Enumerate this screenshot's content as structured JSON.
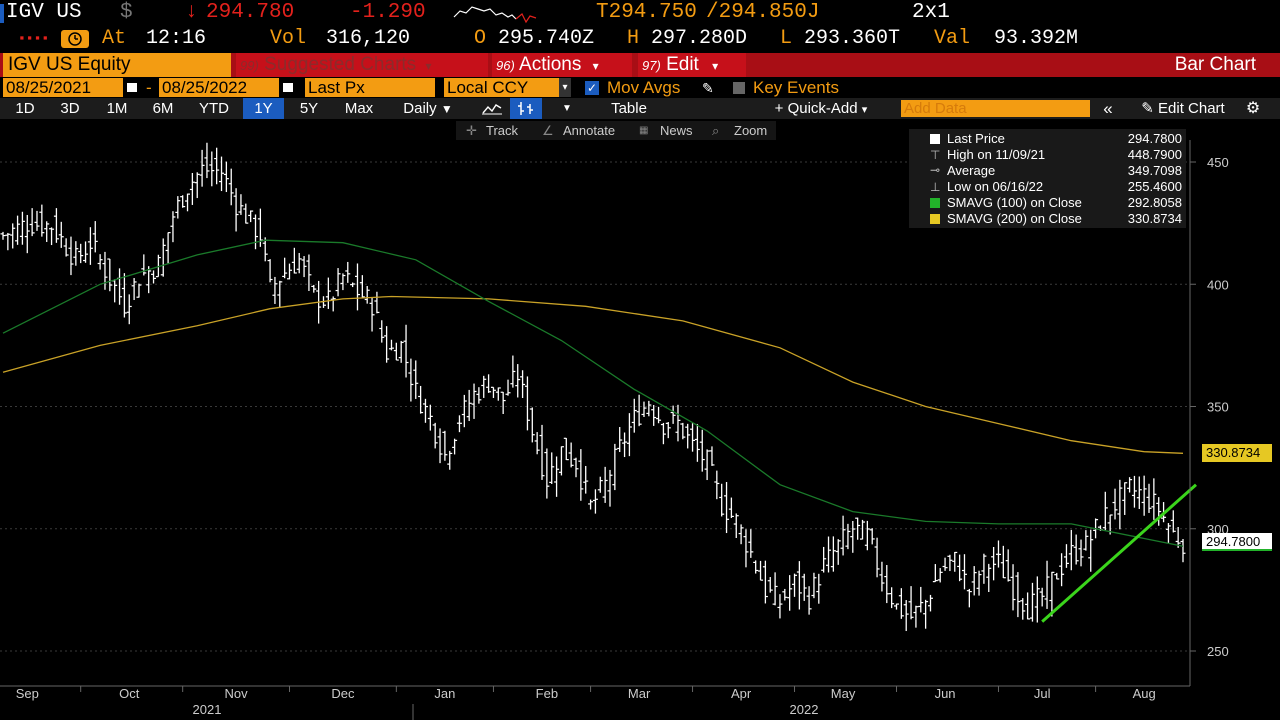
{
  "quote": {
    "ticker": "IGV US",
    "currency_symbol": "$",
    "arrow": "↓",
    "last": "294.780",
    "change": "-1.290",
    "bid": "T294.750",
    "ask": "/294.850J",
    "size": "2x1",
    "time_label": "At",
    "time": "12:16",
    "vol_label": "Vol",
    "vol": "316,120",
    "open_label": "O",
    "open": "295.740Z",
    "high_label": "H",
    "high": "297.280D",
    "low_label": "L",
    "low": "293.360T",
    "val_label": "Val",
    "val": "93.392M"
  },
  "titlebar": {
    "security": "IGV US Equity",
    "suggested_num": "99)",
    "suggested": "Suggested Charts",
    "actions_num": "96)",
    "actions": "Actions",
    "edit_num": "97)",
    "edit": "Edit",
    "page_title": "Bar Chart",
    "dropdown_arrow": "▾"
  },
  "settings": {
    "start_date": "08/25/2021",
    "date_sep": "-",
    "end_date": "08/25/2022",
    "price_field": "Last Px",
    "currency": "Local CCY",
    "mov_avgs": "Mov Avgs",
    "key_events": "Key Events"
  },
  "toolbar": {
    "ranges": [
      "1D",
      "3D",
      "1M",
      "6M",
      "YTD",
      "1Y",
      "5Y",
      "Max"
    ],
    "selected_range": "1Y",
    "periodicity": "Daily",
    "table": "Table",
    "quick_add": "+ Quick-Add",
    "add_data_placeholder": "Add Data",
    "collapse": "«",
    "edit_chart": "Edit Chart",
    "settings": "⚙"
  },
  "chart_tools": {
    "track": "Track",
    "annotate": "Annotate",
    "news": "News",
    "zoom": "Zoom"
  },
  "legend": [
    {
      "label": "Last Price",
      "value": "294.7800",
      "marker": "square-white"
    },
    {
      "label": "High on 11/09/21",
      "value": "448.7900",
      "marker": "high-marker"
    },
    {
      "label": "Average",
      "value": "349.7098",
      "marker": "avg-marker"
    },
    {
      "label": "Low on 06/16/22",
      "value": "255.4600",
      "marker": "low-marker"
    },
    {
      "label": "SMAVG (100)  on Close",
      "value": "292.8058",
      "marker": "square-green"
    },
    {
      "label": "SMAVG (200)  on Close",
      "value": "330.8734",
      "marker": "square-yellow"
    }
  ],
  "tags": {
    "sma200": "330.8734",
    "last": "294.7800"
  },
  "colors": {
    "accent_orange": "#f39c12",
    "header_red": "#a80e15",
    "selected_blue": "#1b5cbf",
    "sma100": "#1a7a2a",
    "sma200": "#c9a227",
    "trendline": "#3bd51c"
  },
  "chart_data": {
    "type": "bar",
    "title": "",
    "y_ticks": [
      450,
      400,
      350,
      300,
      250
    ],
    "ylim": [
      237,
      462
    ],
    "x_months": [
      "Sep",
      "Oct",
      "Nov",
      "Dec",
      "Jan",
      "Feb",
      "Mar",
      "Apr",
      "May",
      "Jun",
      "Jul",
      "Aug"
    ],
    "x_years": [
      "2021",
      "2022"
    ],
    "price_close": [
      [
        0,
        420
      ],
      [
        5,
        425
      ],
      [
        10,
        424
      ],
      [
        15,
        410
      ],
      [
        18,
        417
      ],
      [
        22,
        402
      ],
      [
        25,
        392
      ],
      [
        28,
        403
      ],
      [
        32,
        408
      ],
      [
        35,
        428
      ],
      [
        38,
        440
      ],
      [
        41,
        447
      ],
      [
        45,
        446
      ],
      [
        48,
        433
      ],
      [
        50,
        428
      ],
      [
        53,
        420
      ],
      [
        55,
        398
      ],
      [
        58,
        405
      ],
      [
        61,
        410
      ],
      [
        64,
        395
      ],
      [
        67,
        393
      ],
      [
        70,
        403
      ],
      [
        73,
        397
      ],
      [
        76,
        392
      ],
      [
        79,
        372
      ],
      [
        82,
        375
      ],
      [
        85,
        356
      ],
      [
        88,
        345
      ],
      [
        91,
        330
      ],
      [
        94,
        345
      ],
      [
        97,
        355
      ],
      [
        100,
        360
      ],
      [
        103,
        353
      ],
      [
        106,
        363
      ],
      [
        109,
        340
      ],
      [
        112,
        320
      ],
      [
        115,
        332
      ],
      [
        118,
        327
      ],
      [
        121,
        309
      ],
      [
        124,
        318
      ],
      [
        127,
        333
      ],
      [
        130,
        345
      ],
      [
        133,
        352
      ],
      [
        136,
        343
      ],
      [
        139,
        343
      ],
      [
        142,
        334
      ],
      [
        145,
        327
      ],
      [
        148,
        310
      ],
      [
        151,
        303
      ],
      [
        154,
        290
      ],
      [
        157,
        275
      ],
      [
        160,
        270
      ],
      [
        163,
        278
      ],
      [
        166,
        272
      ],
      [
        169,
        285
      ],
      [
        172,
        293
      ],
      [
        175,
        300
      ],
      [
        178,
        297
      ],
      [
        181,
        280
      ],
      [
        184,
        268
      ],
      [
        187,
        264
      ],
      [
        190,
        270
      ],
      [
        193,
        283
      ],
      [
        196,
        287
      ],
      [
        199,
        275
      ],
      [
        202,
        285
      ],
      [
        205,
        286
      ],
      [
        208,
        276
      ],
      [
        211,
        268
      ],
      [
        214,
        272
      ],
      [
        217,
        282
      ],
      [
        220,
        290
      ],
      [
        223,
        293
      ],
      [
        226,
        303
      ],
      [
        229,
        310
      ],
      [
        232,
        316
      ],
      [
        235,
        314
      ],
      [
        238,
        308
      ],
      [
        241,
        298
      ],
      [
        243,
        294.78
      ]
    ],
    "sma100": [
      [
        0,
        380
      ],
      [
        20,
        400
      ],
      [
        40,
        412
      ],
      [
        54,
        418
      ],
      [
        70,
        417
      ],
      [
        85,
        410
      ],
      [
        100,
        393
      ],
      [
        115,
        377
      ],
      [
        130,
        357
      ],
      [
        145,
        340
      ],
      [
        160,
        318
      ],
      [
        175,
        307
      ],
      [
        190,
        303
      ],
      [
        205,
        302
      ],
      [
        220,
        302
      ],
      [
        235,
        296
      ],
      [
        243,
        292.81
      ]
    ],
    "sma200": [
      [
        0,
        364
      ],
      [
        20,
        375
      ],
      [
        40,
        383
      ],
      [
        55,
        390
      ],
      [
        70,
        394
      ],
      [
        80,
        395
      ],
      [
        100,
        394
      ],
      [
        120,
        391
      ],
      [
        140,
        385
      ],
      [
        160,
        374
      ],
      [
        175,
        360
      ],
      [
        190,
        350
      ],
      [
        205,
        343
      ],
      [
        220,
        336
      ],
      [
        235,
        331.5
      ],
      [
        243,
        330.87
      ]
    ],
    "trendline": [
      [
        214,
        262
      ],
      [
        243,
        318
      ]
    ],
    "high": 448.79,
    "low": 255.46,
    "average": 349.7098
  }
}
